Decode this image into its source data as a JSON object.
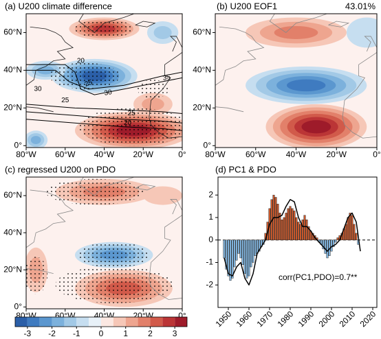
{
  "chart_data": [
    {
      "type": "map",
      "title": "(a) U200 climate difference",
      "xlim": [
        -80,
        0
      ],
      "ylim": [
        -1,
        70
      ],
      "xticks": [
        {
          "value": -80,
          "label": "80°W"
        },
        {
          "value": -60,
          "label": "60°W"
        },
        {
          "value": -40,
          "label": "40°W"
        },
        {
          "value": -20,
          "label": "20°W"
        },
        {
          "value": 0,
          "label": "0°"
        }
      ],
      "yticks": [
        {
          "value": 0,
          "label": "0°"
        },
        {
          "value": 20,
          "label": "20°N"
        },
        {
          "value": 40,
          "label": "40°N"
        },
        {
          "value": 60,
          "label": "60°N"
        }
      ],
      "contour_labels": [
        "30",
        "25",
        "20",
        "30",
        "25",
        "35",
        "20",
        "25"
      ]
    },
    {
      "type": "map",
      "title": "(b) U200 EOF1",
      "annotation": "43.01%",
      "xlim": [
        -80,
        0
      ],
      "ylim": [
        -1,
        70
      ],
      "xticks": [
        {
          "value": -80,
          "label": "80°W"
        },
        {
          "value": -60,
          "label": "60°W"
        },
        {
          "value": -40,
          "label": "40°W"
        },
        {
          "value": -20,
          "label": "20°W"
        },
        {
          "value": 0,
          "label": "0°"
        }
      ],
      "yticks": [
        {
          "value": 0,
          "label": "0°"
        },
        {
          "value": 20,
          "label": "20°N"
        },
        {
          "value": 40,
          "label": "40°N"
        },
        {
          "value": 60,
          "label": "60°N"
        }
      ]
    },
    {
      "type": "map",
      "title": "(c) regressed U200 on PDO",
      "xlim": [
        -80,
        0
      ],
      "ylim": [
        -1,
        70
      ],
      "xticks": [
        {
          "value": -80,
          "label": "80°W"
        },
        {
          "value": -60,
          "label": "60°W"
        },
        {
          "value": -40,
          "label": "40°W"
        },
        {
          "value": -20,
          "label": "20°W"
        },
        {
          "value": 0,
          "label": "0°"
        }
      ],
      "yticks": [
        {
          "value": 0,
          "label": "0°"
        },
        {
          "value": 20,
          "label": "20°N"
        },
        {
          "value": 40,
          "label": "40°N"
        },
        {
          "value": 60,
          "label": "60°N"
        }
      ]
    },
    {
      "type": "barline",
      "title": "(d) PC1 & PDO",
      "annotation": "corr(PC1,PDO)=0.7**",
      "xlim": [
        1945,
        2022
      ],
      "ylim": [
        -3,
        2.8
      ],
      "xticks": [
        1950,
        1960,
        1970,
        1980,
        1990,
        2000,
        2010,
        2020
      ],
      "yticks": [
        -2,
        -1,
        0,
        1,
        2
      ],
      "color_positive": "#c8582c",
      "color_negative": "#7fb2dc",
      "line_color": "#000000",
      "bars": {
        "x": [
          1948,
          1949,
          1950,
          1951,
          1952,
          1953,
          1954,
          1955,
          1956,
          1957,
          1958,
          1959,
          1960,
          1961,
          1962,
          1963,
          1964,
          1965,
          1966,
          1967,
          1968,
          1969,
          1970,
          1971,
          1972,
          1973,
          1974,
          1975,
          1976,
          1977,
          1978,
          1979,
          1980,
          1981,
          1982,
          1983,
          1984,
          1985,
          1986,
          1987,
          1988,
          1989,
          1990,
          1991,
          1992,
          1993,
          1994,
          1995,
          1996,
          1997,
          1998,
          1999,
          2000,
          2001,
          2002,
          2003,
          2004,
          2005,
          2006,
          2007,
          2008,
          2009,
          2010,
          2011,
          2012,
          2013
        ],
        "values": [
          -0.8,
          -1.3,
          -1.6,
          -1.8,
          -1.7,
          -1.2,
          -0.9,
          -0.6,
          -0.8,
          -1.1,
          -1.5,
          -1.7,
          -1.6,
          -1.2,
          -1.0,
          -0.7,
          -0.6,
          -0.5,
          -0.3,
          -0.2,
          0.3,
          0.8,
          1.4,
          1.8,
          2.0,
          1.9,
          1.6,
          1.2,
          0.9,
          1.0,
          1.2,
          1.4,
          1.5,
          1.4,
          1.3,
          1.0,
          0.8,
          0.7,
          0.9,
          1.1,
          0.9,
          0.6,
          0.4,
          0.3,
          0.2,
          0.1,
          -0.1,
          -0.2,
          -0.4,
          -0.6,
          -0.8,
          -0.7,
          -0.5,
          -0.3,
          -0.1,
          0.1,
          0.2,
          0.3,
          0.5,
          0.7,
          1.0,
          1.2,
          1.1,
          0.7,
          0.3,
          -0.2
        ]
      },
      "line": {
        "x": [
          1948,
          1950,
          1952,
          1954,
          1956,
          1958,
          1960,
          1962,
          1964,
          1966,
          1968,
          1970,
          1972,
          1974,
          1976,
          1978,
          1980,
          1982,
          1984,
          1986,
          1988,
          1990,
          1992,
          1994,
          1996,
          1998,
          2000,
          2002,
          2004,
          2006,
          2008,
          2010,
          2012,
          2014
        ],
        "values": [
          -0.8,
          -1.5,
          -1.6,
          -1.2,
          -1.0,
          -1.7,
          -2.0,
          -1.5,
          -0.6,
          -0.3,
          0.0,
          0.7,
          1.0,
          1.0,
          1.1,
          1.5,
          1.8,
          1.7,
          1.0,
          0.6,
          0.6,
          0.4,
          0.1,
          -0.1,
          -0.3,
          -0.5,
          -0.3,
          -0.2,
          0.0,
          0.5,
          1.0,
          1.2,
          0.8,
          -0.5
        ]
      }
    },
    {
      "type": "colorbar",
      "xlim": [
        -3.5,
        3.5
      ],
      "xticks": [
        -3,
        -2,
        -1,
        0,
        1,
        2,
        3
      ],
      "colors": [
        "#2b5fa8",
        "#3f7bc0",
        "#5b97cf",
        "#7cb1dc",
        "#a2c9e6",
        "#c6def0",
        "#e8f1f8",
        "#fbe8e2",
        "#f6c7b7",
        "#eea58f",
        "#e2806a",
        "#d15a4a",
        "#bb3536",
        "#9e1b2a"
      ]
    }
  ]
}
